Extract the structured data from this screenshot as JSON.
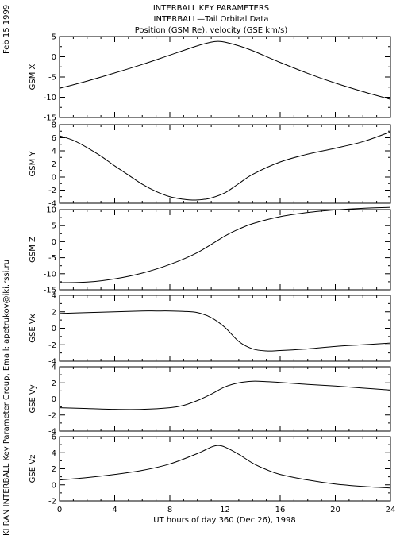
{
  "header": {
    "lines": [
      "INTERBALL KEY PARAMETERS",
      "INTERBALL—Tail Orbital Data",
      "Position (GSM Re), velocity (GSE km/s)"
    ],
    "date_stamp": "Feb 15 1999",
    "credit": "IKI RAN INTERBALL Key Parameter Group, Email: apetrukov@iki.rssi.ru"
  },
  "x_axis": {
    "label": "UT hours of day 360 (Dec 26), 1998",
    "range": [
      0,
      24
    ],
    "ticks": [
      "0",
      "4",
      "8",
      "12",
      "16",
      "20",
      "24"
    ]
  },
  "chart_data": [
    {
      "type": "line",
      "ylabel": "GSM X",
      "ylim": [
        -15,
        5
      ],
      "yticks": [
        -15,
        -10,
        -5,
        0,
        5
      ],
      "x": [
        0,
        2,
        4,
        6,
        8,
        10,
        11,
        11.5,
        12,
        13,
        14,
        16,
        18,
        20,
        22,
        24
      ],
      "y": [
        -7.8,
        -6.0,
        -4.0,
        -1.9,
        0.4,
        2.7,
        3.6,
        3.8,
        3.6,
        2.7,
        1.5,
        -1.4,
        -4.1,
        -6.5,
        -8.6,
        -10.5
      ]
    },
    {
      "type": "line",
      "ylabel": "GSM Y",
      "ylim": [
        -4,
        8
      ],
      "yticks": [
        -4,
        -2,
        0,
        2,
        4,
        6,
        8
      ],
      "x": [
        0,
        1,
        2,
        3,
        4,
        5,
        6,
        7,
        8,
        9,
        9.5,
        10,
        10.5,
        11,
        12,
        13,
        14,
        16,
        18,
        20,
        22,
        24
      ],
      "y": [
        6.3,
        5.6,
        4.5,
        3.2,
        1.7,
        0.3,
        -1.1,
        -2.2,
        -3.0,
        -3.4,
        -3.5,
        -3.5,
        -3.4,
        -3.2,
        -2.4,
        -1.0,
        0.4,
        2.3,
        3.5,
        4.4,
        5.4,
        6.9
      ]
    },
    {
      "type": "line",
      "ylabel": "GSM Z",
      "ylim": [
        -15,
        10
      ],
      "yticks": [
        -15,
        -10,
        -5,
        0,
        5,
        10
      ],
      "x": [
        0,
        2,
        4,
        6,
        8,
        10,
        12,
        13,
        14,
        16,
        18,
        20,
        22,
        24
      ],
      "y": [
        -12.8,
        -12.6,
        -11.6,
        -9.8,
        -7.1,
        -3.4,
        1.8,
        3.9,
        5.6,
        7.8,
        9.1,
        9.9,
        10.4,
        10.7
      ]
    },
    {
      "type": "line",
      "ylabel": "GSE Vx",
      "ylim": [
        -4,
        4
      ],
      "yticks": [
        -4,
        -2,
        0,
        2,
        4
      ],
      "x": [
        0,
        2,
        4,
        6,
        7,
        8,
        9,
        10,
        11,
        12,
        13,
        14,
        15,
        16,
        18,
        20,
        22,
        24
      ],
      "y": [
        1.8,
        1.9,
        2.0,
        2.1,
        2.1,
        2.1,
        2.05,
        1.9,
        1.3,
        0.1,
        -1.6,
        -2.5,
        -2.75,
        -2.7,
        -2.5,
        -2.2,
        -2.0,
        -1.8
      ]
    },
    {
      "type": "line",
      "ylabel": "GSE Vy",
      "ylim": [
        -4,
        4
      ],
      "yticks": [
        -4,
        -2,
        0,
        2,
        4
      ],
      "x": [
        0,
        2,
        4,
        6,
        8,
        9,
        10,
        11,
        12,
        13,
        14,
        15,
        16,
        18,
        20,
        22,
        24
      ],
      "y": [
        -1.1,
        -1.2,
        -1.3,
        -1.3,
        -1.1,
        -0.8,
        -0.2,
        0.6,
        1.5,
        2.0,
        2.2,
        2.15,
        2.05,
        1.8,
        1.6,
        1.35,
        1.1
      ]
    },
    {
      "type": "line",
      "ylabel": "GSE Vz",
      "ylim": [
        -2,
        6
      ],
      "yticks": [
        -2,
        0,
        2,
        4,
        6
      ],
      "x": [
        0,
        2,
        4,
        6,
        8,
        10,
        11,
        11.5,
        12,
        13,
        14,
        15,
        16,
        18,
        20,
        22,
        24
      ],
      "y": [
        0.6,
        0.9,
        1.3,
        1.8,
        2.6,
        3.9,
        4.7,
        4.9,
        4.7,
        3.8,
        2.7,
        1.9,
        1.3,
        0.6,
        0.1,
        -0.2,
        -0.4
      ]
    }
  ]
}
